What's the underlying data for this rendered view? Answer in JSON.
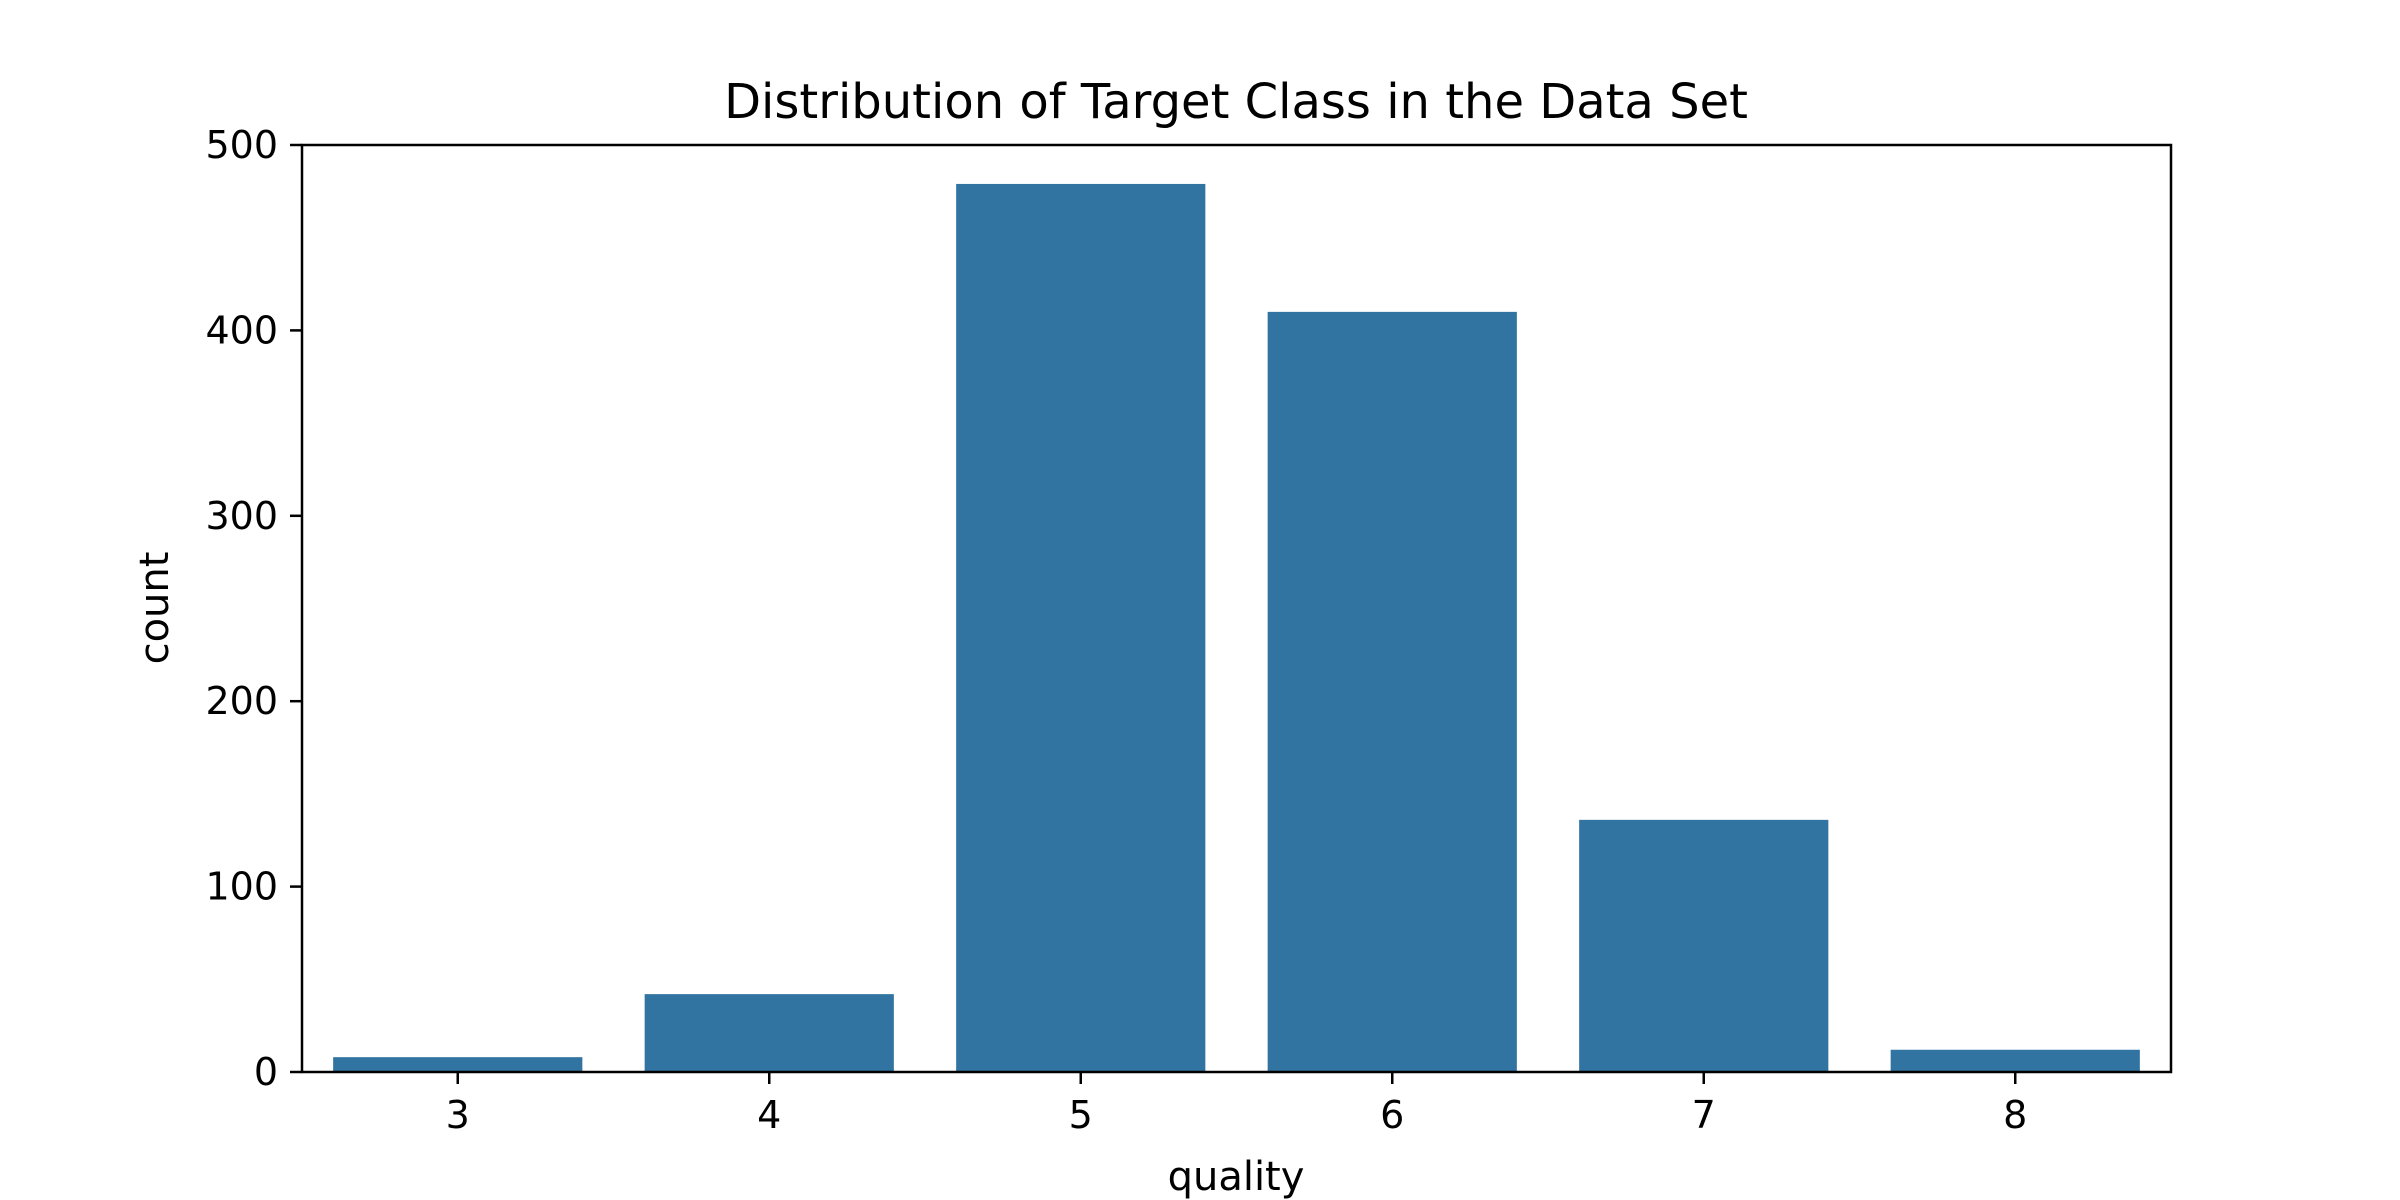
{
  "chart_data": {
    "type": "bar",
    "title": "Distribution of Target Class in the Data Set",
    "xlabel": "quality",
    "ylabel": "count",
    "categories": [
      "3",
      "4",
      "5",
      "6",
      "7",
      "8"
    ],
    "values": [
      8,
      42,
      479,
      410,
      136,
      12
    ],
    "ylim": [
      0,
      500
    ],
    "yticks": [
      0,
      100,
      200,
      300,
      400,
      500
    ],
    "grid": false,
    "bar_color": "#3274a1"
  }
}
